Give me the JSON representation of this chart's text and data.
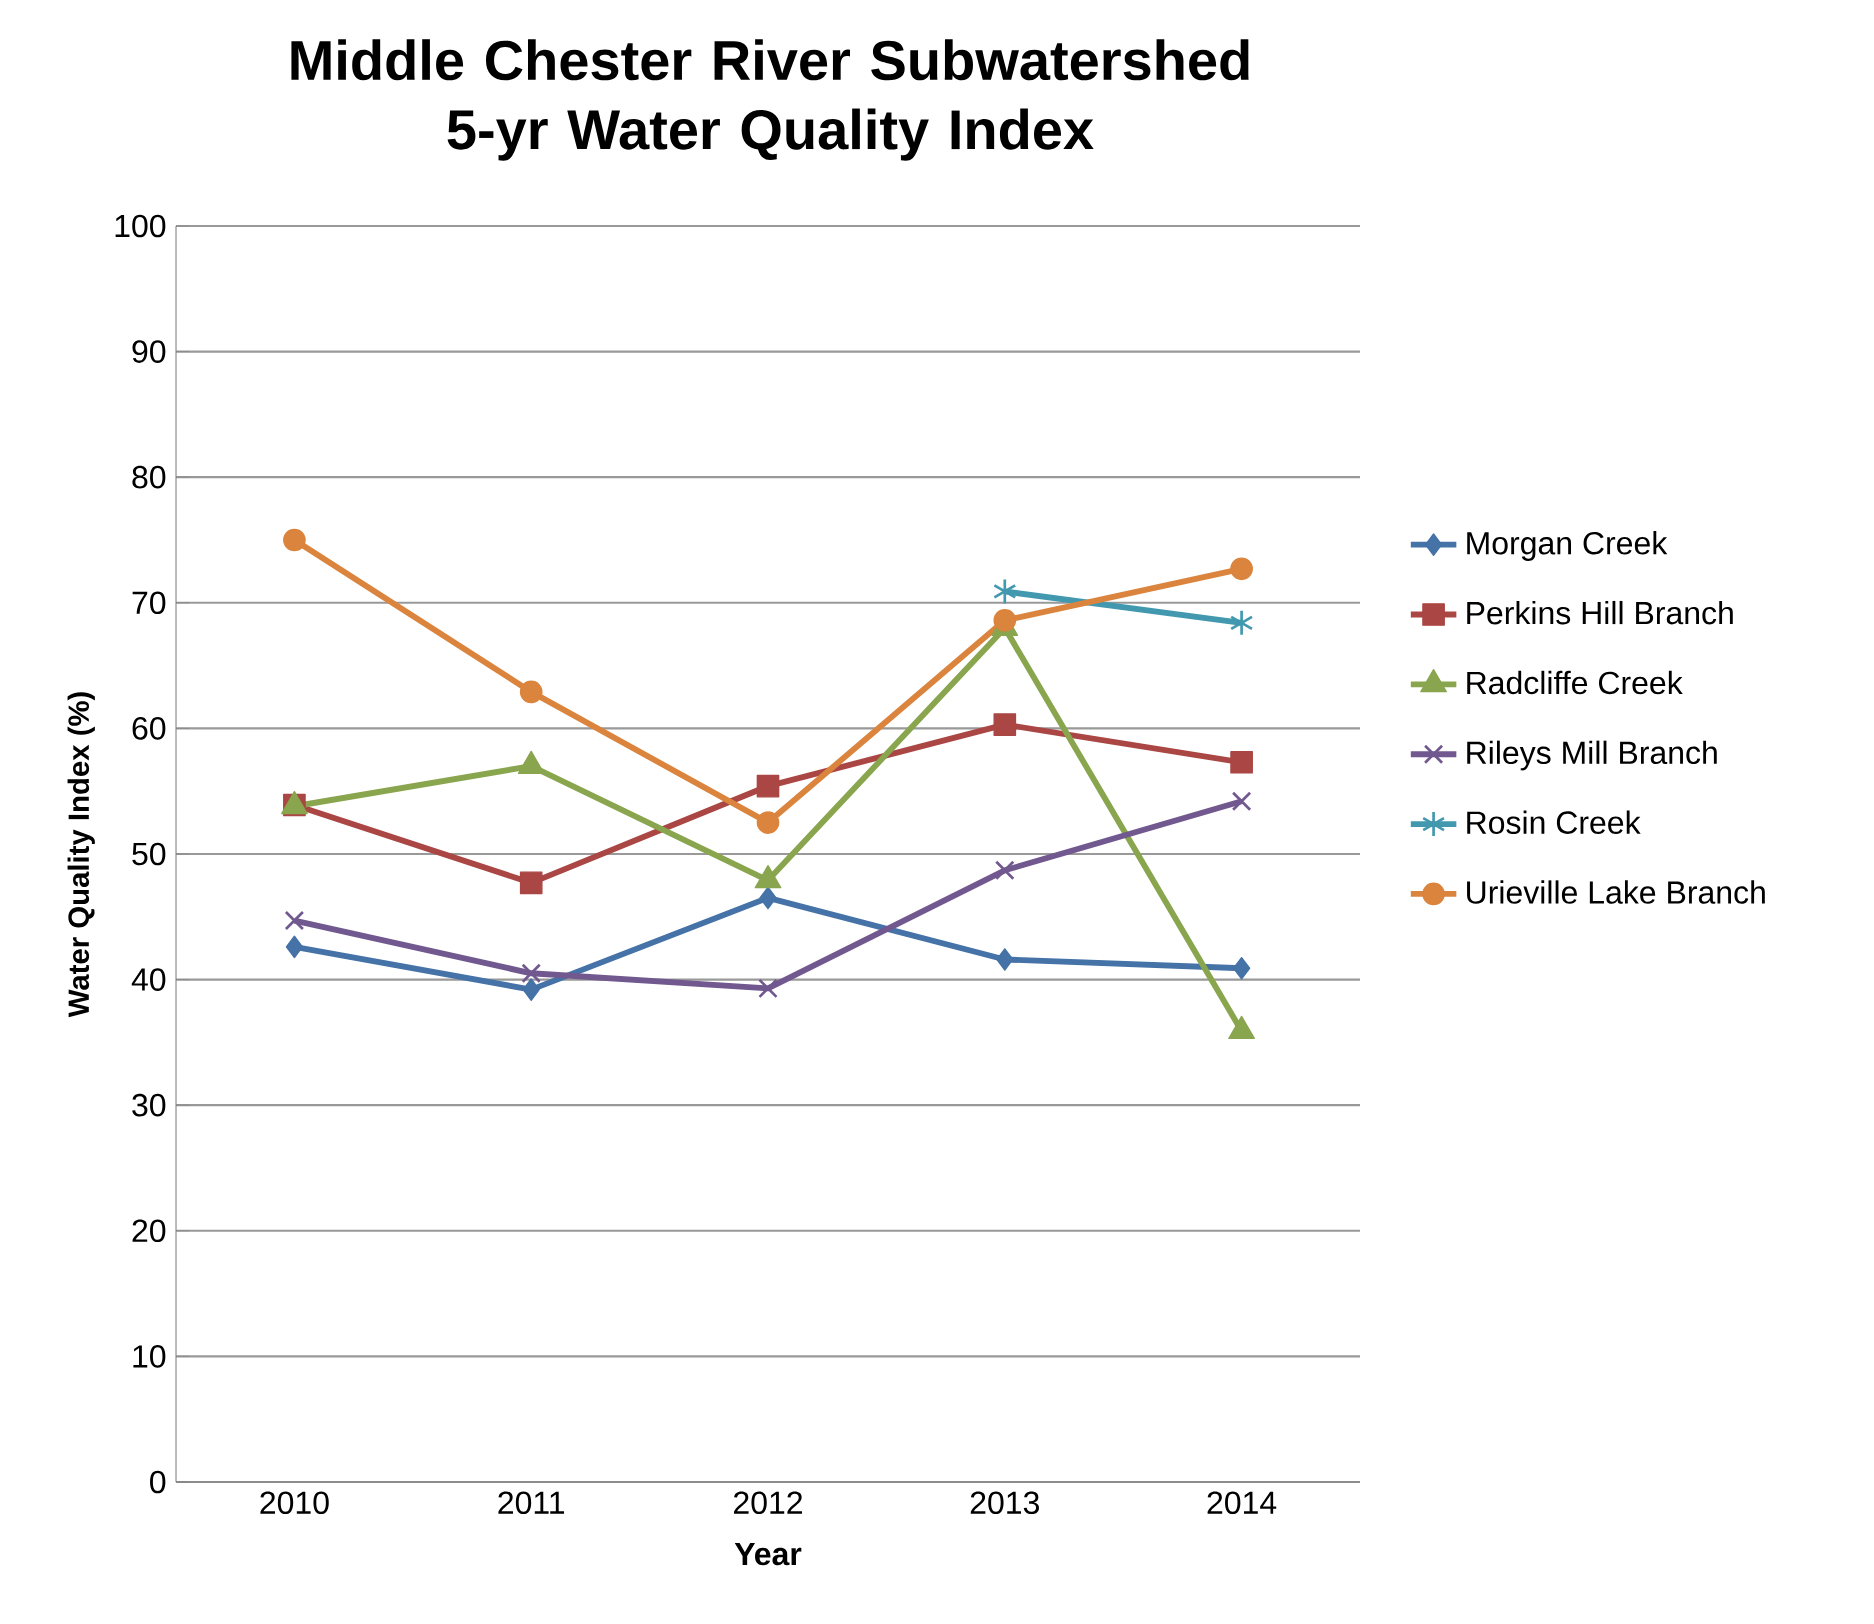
{
  "chart_data": {
    "type": "line",
    "title": "Middle Chester River Subwatershed 5-yr Water Quality Index",
    "xlabel": "Year",
    "ylabel": "Water Quality Index (%)",
    "categories": [
      "2010",
      "2011",
      "2012",
      "2013",
      "2014"
    ],
    "series": [
      {
        "name": "Morgan Creek",
        "color": "#4572a7",
        "marker": "diamond",
        "values": [
          42.6,
          39.2,
          46.5,
          41.6,
          40.9
        ]
      },
      {
        "name": "Perkins Hill Branch",
        "color": "#aa4643",
        "marker": "square",
        "values": [
          53.9,
          47.7,
          55.4,
          60.3,
          57.3
        ]
      },
      {
        "name": "Radcliffe Creek",
        "color": "#89a54e",
        "marker": "triangle",
        "values": [
          53.8,
          57.0,
          47.9,
          68.0,
          35.9
        ]
      },
      {
        "name": "Rileys Mill Branch",
        "color": "#71588f",
        "marker": "cross",
        "values": [
          44.7,
          40.5,
          39.3,
          48.7,
          54.2
        ]
      },
      {
        "name": "Rosin Creek",
        "color": "#4198af",
        "marker": "cross",
        "values": [
          null,
          null,
          null,
          70.9,
          68.4
        ]
      },
      {
        "name": "Urieville Lake Branch",
        "color": "#db843d",
        "marker": "circle",
        "values": [
          75.0,
          62.9,
          52.5,
          68.6,
          72.7
        ]
      }
    ],
    "ylim": [
      0,
      100
    ],
    "yticks": [
      0,
      10,
      20,
      30,
      40,
      50,
      60,
      70,
      80,
      90,
      100
    ],
    "grid": "y",
    "legend": "right",
    "line_style": "solid"
  }
}
